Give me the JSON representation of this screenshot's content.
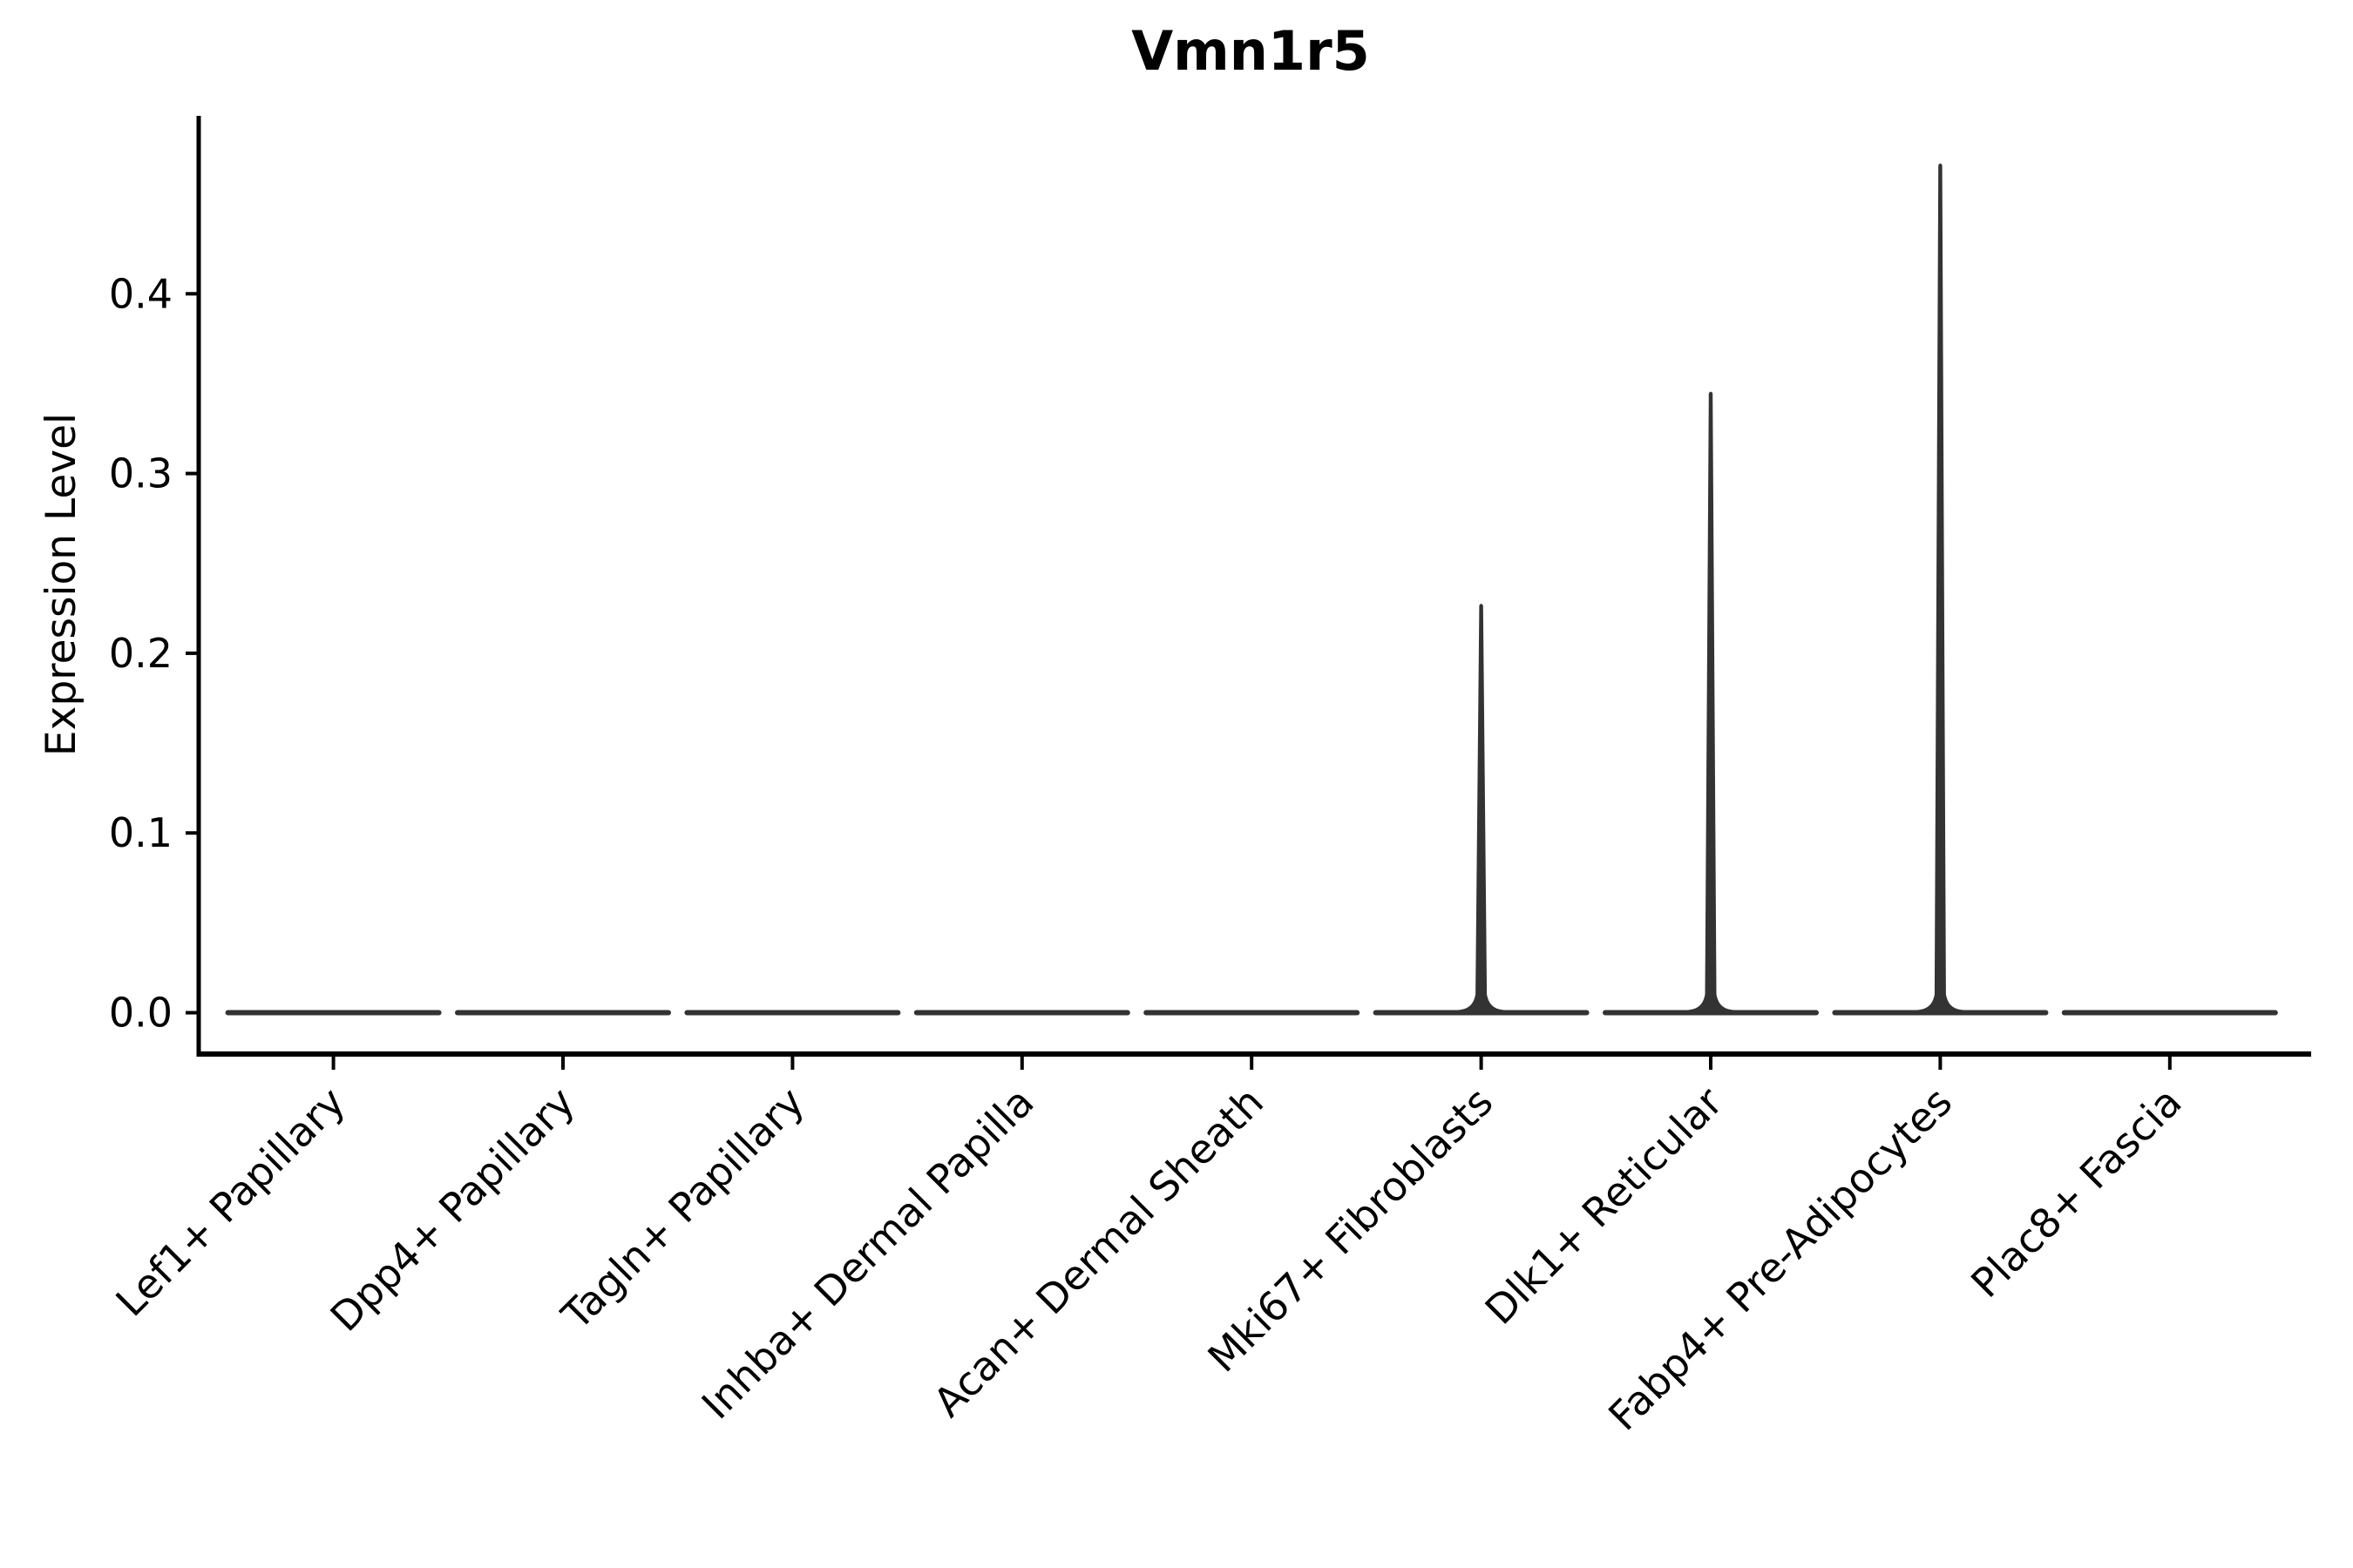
{
  "figure": {
    "background": "#ffffff"
  },
  "chart_data": {
    "type": "violin",
    "title": "Vmn1r5",
    "xlabel": "",
    "ylabel": "Expression Level",
    "categories": [
      "Lef1+ Papillary",
      "Dpp4+ Papillary",
      "Tagln+ Papillary",
      "Inhba+ Dermal Papilla",
      "Acan+ Dermal Sheath",
      "Mki67+ Fibroblasts",
      "Dlk1+ Reticular",
      "Fabp4+ Pre-Adipocytes",
      "Plac8+ Fascia"
    ],
    "series": [
      {
        "name": "max_expression",
        "values": [
          0.0,
          0.0,
          0.0,
          0.0,
          0.0,
          0.228,
          0.346,
          0.473,
          0.0
        ]
      }
    ],
    "baseline_value": 0.0,
    "yticks": [
      0.0,
      0.1,
      0.2,
      0.3,
      0.4
    ],
    "ytick_labels": [
      "0.0",
      "0.1",
      "0.2",
      "0.3",
      "0.4"
    ],
    "ylim": [
      -0.023,
      0.499
    ],
    "grid": false,
    "legend_position": "none",
    "tick_label_rotation_deg": 45,
    "violin_color": "#333333",
    "axis_color": "#000000"
  }
}
